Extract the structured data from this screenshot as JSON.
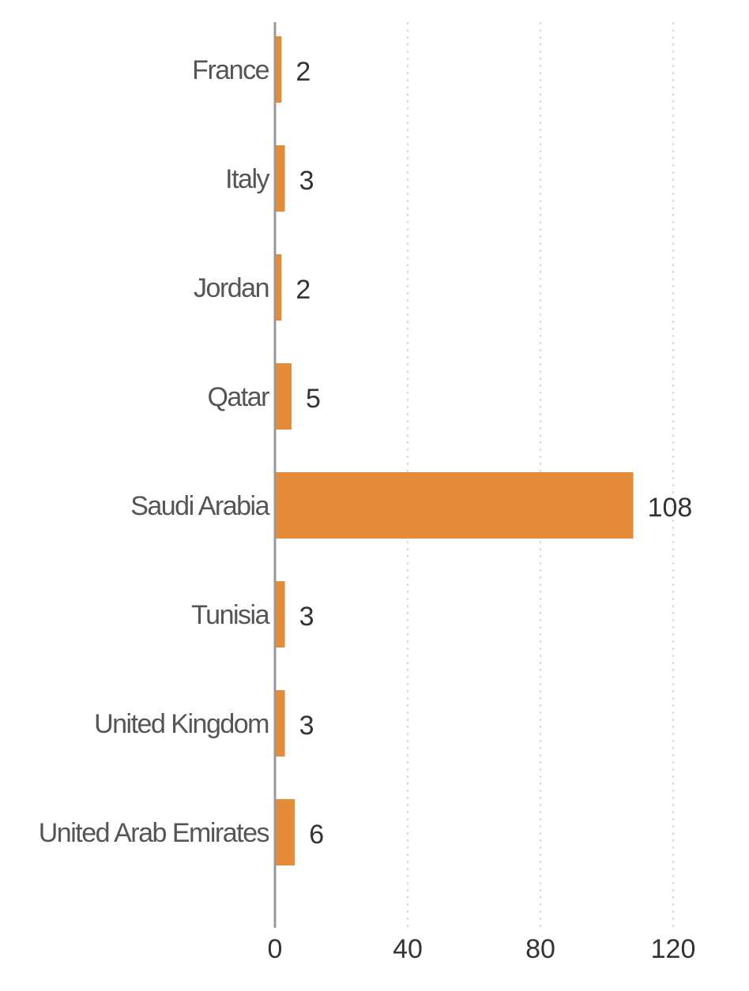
{
  "chart_data": {
    "type": "bar",
    "orientation": "horizontal",
    "categories": [
      "France",
      "Italy",
      "Jordan",
      "Qatar",
      "Saudi Arabia",
      "Tunisia",
      "United Kingdom",
      "United Arab Emirates"
    ],
    "values": [
      2,
      3,
      2,
      5,
      108,
      3,
      3,
      6
    ],
    "title": "",
    "xlabel": "",
    "ylabel": "",
    "xlim": [
      0,
      120
    ],
    "xticks": [
      0,
      40,
      80,
      120
    ],
    "grid": "vertical dotted",
    "legend": "none",
    "bar_color": "#E58C3B",
    "axis_color": "#999999",
    "grid_color": "#d9d9d9"
  }
}
